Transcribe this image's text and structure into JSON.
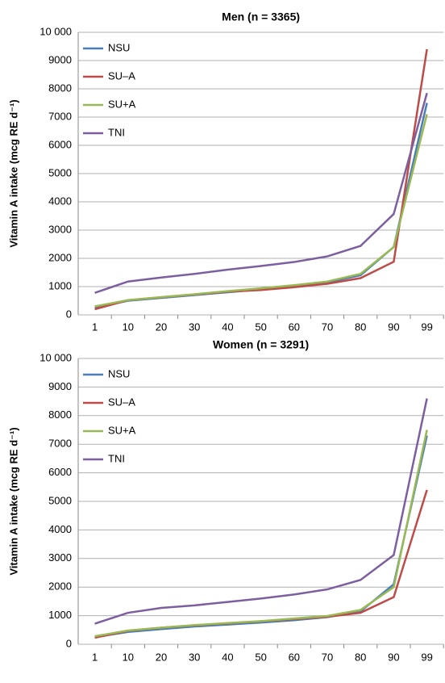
{
  "chart_data": [
    {
      "type": "line",
      "title": "Men (n = 3365)",
      "y_label": "Vitamin A intake (mcg RE d⁻¹)",
      "categories": [
        "1",
        "10",
        "20",
        "30",
        "40",
        "50",
        "60",
        "70",
        "80",
        "90",
        "99"
      ],
      "ylim": [
        0,
        10000
      ],
      "yticks": [
        0,
        1000,
        2000,
        3000,
        4000,
        5000,
        6000,
        7000,
        8000,
        9000,
        {
          "value": 10000,
          "label": "10 000"
        }
      ],
      "grid": true,
      "legend": "upper-left",
      "series": [
        {
          "name": "NSU",
          "color": "#4a7ebb",
          "values": [
            250,
            500,
            600,
            700,
            800,
            900,
            1000,
            1150,
            1400,
            2400,
            7500
          ]
        },
        {
          "name": "SU–A",
          "color": "#be4b48",
          "values": [
            200,
            520,
            620,
            720,
            820,
            880,
            980,
            1100,
            1300,
            1880,
            9400
          ]
        },
        {
          "name": "SU+A",
          "color": "#98b954",
          "values": [
            300,
            520,
            630,
            730,
            840,
            940,
            1050,
            1180,
            1450,
            2400,
            7100
          ]
        },
        {
          "name": "TNI",
          "color": "#7d5fa0",
          "values": [
            780,
            1180,
            1320,
            1450,
            1600,
            1730,
            1870,
            2070,
            2440,
            3570,
            7850
          ]
        }
      ]
    },
    {
      "type": "line",
      "title": "Women (n = 3291)",
      "y_label": "Vitamin A intake (mcg RE d⁻¹)",
      "categories": [
        "1",
        "10",
        "20",
        "30",
        "40",
        "50",
        "60",
        "70",
        "80",
        "90",
        "99"
      ],
      "ylim": [
        0,
        10000
      ],
      "yticks": [
        0,
        1000,
        2000,
        3000,
        4000,
        5000,
        6000,
        7000,
        8000,
        9000,
        {
          "value": 10000,
          "label": "10 000"
        }
      ],
      "grid": true,
      "legend": "upper-left",
      "series": [
        {
          "name": "NSU",
          "color": "#4a7ebb",
          "values": [
            250,
            430,
            530,
            620,
            690,
            760,
            840,
            950,
            1150,
            2100,
            7300
          ]
        },
        {
          "name": "SU–A",
          "color": "#be4b48",
          "values": [
            230,
            470,
            580,
            660,
            730,
            800,
            880,
            960,
            1100,
            1650,
            5400
          ]
        },
        {
          "name": "SU+A",
          "color": "#98b954",
          "values": [
            280,
            480,
            580,
            670,
            740,
            810,
            900,
            990,
            1200,
            2000,
            7500
          ]
        },
        {
          "name": "TNI",
          "color": "#7d5fa0",
          "values": [
            720,
            1100,
            1270,
            1360,
            1480,
            1600,
            1740,
            1920,
            2250,
            3120,
            8600
          ]
        }
      ]
    }
  ]
}
